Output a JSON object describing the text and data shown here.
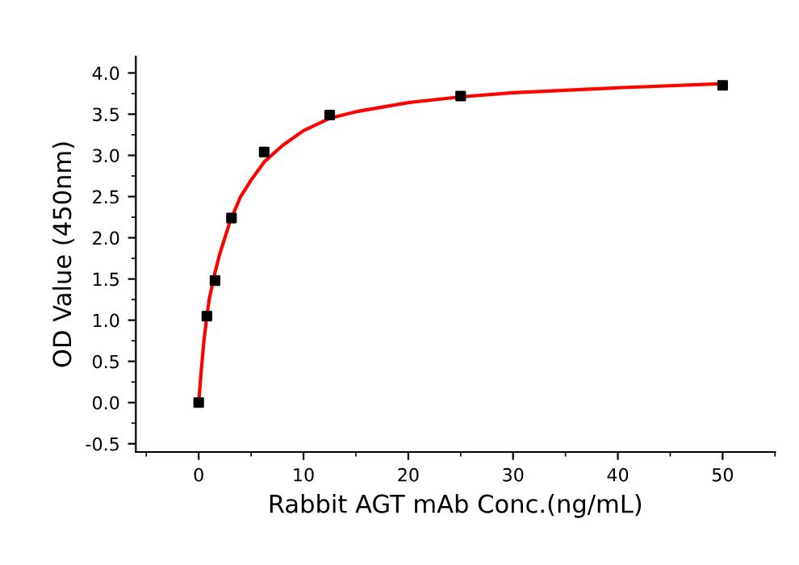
{
  "chart_data": {
    "type": "scatter",
    "xlabel": "Rabbit AGT mAb Conc.(ng/mL)",
    "ylabel": "OD Value (450nm)",
    "xlim": [
      -6,
      55
    ],
    "ylim": [
      -0.6,
      4.2
    ],
    "xticks": [
      0,
      10,
      20,
      30,
      40,
      50
    ],
    "yticks": [
      -0.5,
      {
        "value": 0,
        "label": "0.0"
      },
      0.5,
      {
        "value": 1,
        "label": "1.0"
      },
      1.5,
      {
        "value": 2,
        "label": "2.0"
      },
      2.5,
      {
        "value": 3,
        "label": "3.0"
      },
      3.5,
      {
        "value": 4,
        "label": "4.0"
      }
    ],
    "grid": false,
    "legend": false,
    "series": [
      {
        "type": "line",
        "color": "#ff0000",
        "marker": "none",
        "x": [
          0,
          0.25,
          0.5,
          0.75,
          1,
          1.5,
          2,
          3,
          4,
          5,
          6.25,
          8,
          10,
          12.5,
          15,
          20,
          25,
          30,
          40,
          50
        ],
        "values": [
          0.0,
          0.4,
          0.75,
          1.02,
          1.25,
          1.55,
          1.8,
          2.2,
          2.5,
          2.7,
          2.92,
          3.12,
          3.3,
          3.45,
          3.53,
          3.64,
          3.71,
          3.76,
          3.82,
          3.87
        ]
      },
      {
        "color": "#000000",
        "marker": "square",
        "x": [
          0,
          0.78,
          1.56,
          3.125,
          6.25,
          12.5,
          25,
          50
        ],
        "values": [
          0.0,
          1.05,
          1.48,
          2.24,
          3.04,
          3.49,
          3.72,
          3.85
        ]
      }
    ]
  }
}
